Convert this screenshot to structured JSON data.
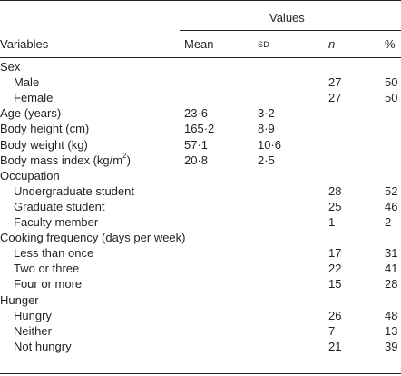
{
  "header": {
    "values_label": "Values",
    "variables_label": "Variables",
    "mean_label": "Mean",
    "sd_label": "SD",
    "n_label": "n",
    "pct_label": "%"
  },
  "rows": [
    {
      "label": "Sex",
      "indent": false,
      "mean": "",
      "sd": "",
      "n": "",
      "pct": ""
    },
    {
      "label": "Male",
      "indent": true,
      "mean": "",
      "sd": "",
      "n": "27",
      "pct": "50"
    },
    {
      "label": "Female",
      "indent": true,
      "mean": "",
      "sd": "",
      "n": "27",
      "pct": "50"
    },
    {
      "label": "Age (years)",
      "indent": false,
      "mean": "23·6",
      "sd": "3·2",
      "n": "",
      "pct": ""
    },
    {
      "label": "Body height (cm)",
      "indent": false,
      "mean": "165·2",
      "sd": "8·9",
      "n": "",
      "pct": ""
    },
    {
      "label": "Body weight (kg)",
      "indent": false,
      "mean": "57·1",
      "sd": "10·6",
      "n": "",
      "pct": ""
    },
    {
      "label": "Body mass index (kg/m",
      "label_sup": "2",
      "label_tail": ")",
      "indent": false,
      "mean": "20·8",
      "sd": "2·5",
      "n": "",
      "pct": ""
    },
    {
      "label": "Occupation",
      "indent": false,
      "mean": "",
      "sd": "",
      "n": "",
      "pct": ""
    },
    {
      "label": "Undergraduate student",
      "indent": true,
      "mean": "",
      "sd": "",
      "n": "28",
      "pct": "52"
    },
    {
      "label": "Graduate student",
      "indent": true,
      "mean": "",
      "sd": "",
      "n": "25",
      "pct": "46"
    },
    {
      "label": "Faculty member",
      "indent": true,
      "mean": "",
      "sd": "",
      "n": "1",
      "pct": "2"
    },
    {
      "label": "Cooking frequency (days per week)",
      "indent": false,
      "mean": "",
      "sd": "",
      "n": "",
      "pct": ""
    },
    {
      "label": "Less than once",
      "indent": true,
      "mean": "",
      "sd": "",
      "n": "17",
      "pct": "31"
    },
    {
      "label": "Two or three",
      "indent": true,
      "mean": "",
      "sd": "",
      "n": "22",
      "pct": "41"
    },
    {
      "label": "Four or more",
      "indent": true,
      "mean": "",
      "sd": "",
      "n": "15",
      "pct": "28"
    },
    {
      "label": "Hunger",
      "indent": false,
      "mean": "",
      "sd": "",
      "n": "",
      "pct": ""
    },
    {
      "label": "Hungry",
      "indent": true,
      "mean": "",
      "sd": "",
      "n": "26",
      "pct": "48"
    },
    {
      "label": "Neither",
      "indent": true,
      "mean": "",
      "sd": "",
      "n": "7",
      "pct": "13"
    },
    {
      "label": "Not hungry",
      "indent": true,
      "mean": "",
      "sd": "",
      "n": "21",
      "pct": "39"
    }
  ]
}
